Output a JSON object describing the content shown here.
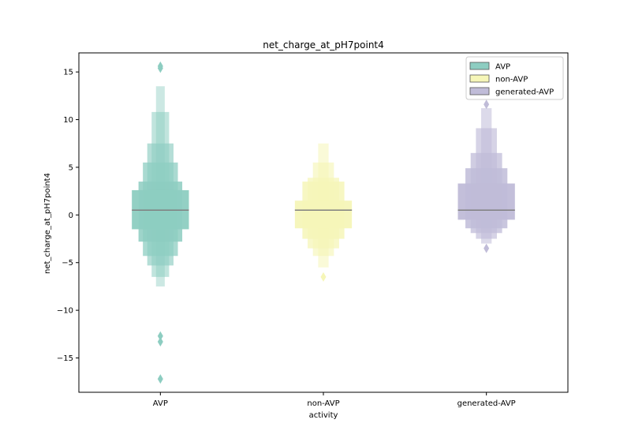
{
  "chart_data": {
    "type": "boxen",
    "title": "net_charge_at_pH7point4",
    "xlabel": "activity",
    "ylabel": "net_charge_at_pH7point4",
    "ylim": [
      -18.6,
      17.0
    ],
    "yticks": [
      15,
      10,
      5,
      0,
      -5,
      -10,
      -15
    ],
    "ytick_labels": [
      "15",
      "10",
      "5",
      "0",
      "−5",
      "−10",
      "−15"
    ],
    "categories": [
      "AVP",
      "non-AVP",
      "generated-AVP"
    ],
    "legend": {
      "position": "top-right",
      "entries": [
        "AVP",
        "non-AVP",
        "generated-AVP"
      ]
    },
    "grid": false,
    "series": [
      {
        "name": "AVP",
        "color": "#8dcdc1",
        "median": 0.5,
        "letter_values": [
          [
            -1.5,
            2.6
          ],
          [
            -2.8,
            3.5
          ],
          [
            -4.3,
            5.5
          ],
          [
            -5.3,
            7.5
          ],
          [
            -6.5,
            10.8
          ],
          [
            -7.5,
            13.5
          ]
        ],
        "outliers": [
          15.6,
          15.4,
          -12.7,
          -13.3,
          -17.2
        ]
      },
      {
        "name": "non-AVP",
        "color": "#f6f6b8",
        "median": 0.5,
        "letter_values": [
          [
            -1.4,
            1.5
          ],
          [
            -2.5,
            3.5
          ],
          [
            -3.5,
            3.9
          ],
          [
            -4.3,
            5.5
          ],
          [
            -5.5,
            7.5
          ]
        ],
        "outliers": [
          -6.5
        ]
      },
      {
        "name": "generated-AVP",
        "color": "#c0bcd8",
        "median": 0.5,
        "letter_values": [
          [
            -0.5,
            3.3
          ],
          [
            -1.4,
            4.9
          ],
          [
            -1.9,
            6.5
          ],
          [
            -2.5,
            9.1
          ],
          [
            -3.0,
            11.2
          ]
        ],
        "outliers": [
          11.6,
          -3.5
        ]
      }
    ]
  }
}
